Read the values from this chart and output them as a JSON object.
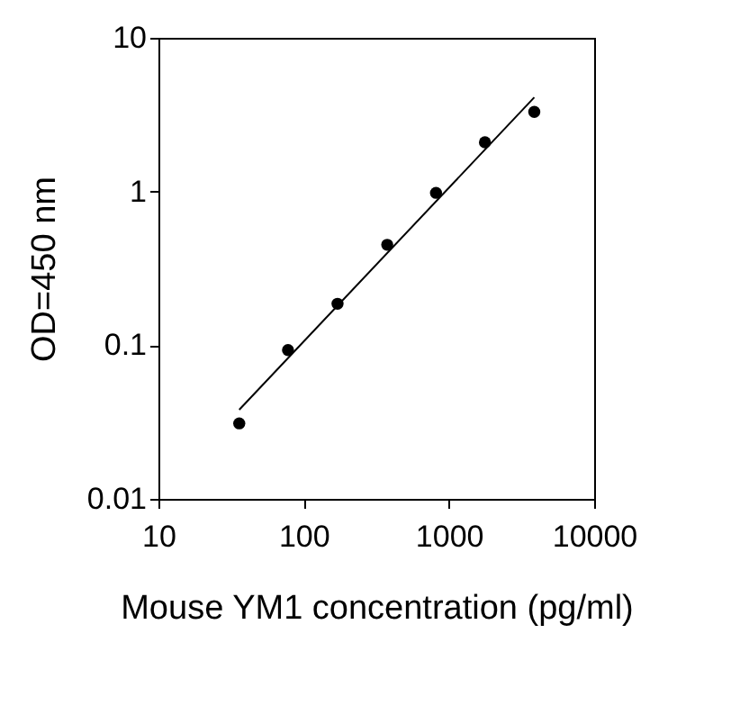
{
  "chart_data": {
    "type": "scatter",
    "xlabel": "Mouse YM1 concentration (pg/ml)",
    "ylabel": "OD=450 nm",
    "log": "xy",
    "grid": false,
    "marker": "circle",
    "xlim": [
      10,
      10000
    ],
    "xticks": [
      10,
      100,
      1000,
      10000
    ],
    "ylim": [
      0.01,
      10
    ],
    "yticks": [
      0.01,
      0.1,
      1,
      10
    ],
    "series": [
      {
        "color": "#000000",
        "x": [
          36,
          78,
          171,
          376,
          815,
          1770,
          3870
        ],
        "values": [
          0.031,
          0.093,
          0.186,
          0.45,
          0.98,
          2.09,
          3.3
        ]
      },
      {
        "type": "line",
        "color": "#000000",
        "line_style": "solid",
        "marker": "none",
        "x": [
          36,
          3870
        ],
        "values": [
          0.038,
          4.1
        ]
      }
    ]
  }
}
